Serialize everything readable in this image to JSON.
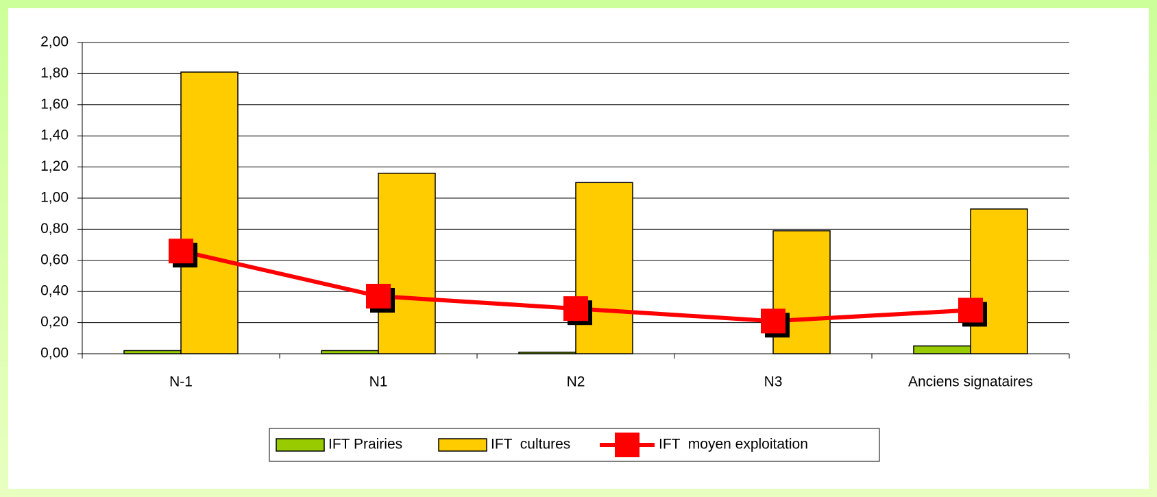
{
  "chart_data": {
    "type": "bar",
    "categories": [
      "N-1",
      "N1",
      "N2",
      "N3",
      "Anciens signataires"
    ],
    "series": [
      {
        "name": "IFT Prairies",
        "color": "#99cc00",
        "values": [
          0.02,
          0.02,
          0.01,
          0,
          0.05
        ]
      },
      {
        "name": "IFT  cultures",
        "color": "#ffcc00",
        "values": [
          1.81,
          1.16,
          1.1,
          0.79,
          0.93
        ]
      },
      {
        "name": "IFT  moyen exploitation",
        "color": "#ff0000",
        "type": "line",
        "values": [
          0.66,
          0.37,
          0.29,
          0.21,
          0.28
        ]
      }
    ],
    "ylim": [
      0,
      2
    ],
    "yticks": [
      {
        "value": 0,
        "label": "0,00"
      },
      {
        "value": 0.2,
        "label": "0,20"
      },
      {
        "value": 0.4,
        "label": "0,40"
      },
      {
        "value": 0.6,
        "label": "0,60"
      },
      {
        "value": 0.8,
        "label": "0,80"
      },
      {
        "value": 1,
        "label": "1,00"
      },
      {
        "value": 1.2,
        "label": "1,20"
      },
      {
        "value": 1.4,
        "label": "1,40"
      },
      {
        "value": 1.6,
        "label": "1,60"
      },
      {
        "value": 1.8,
        "label": "1,80"
      },
      {
        "value": 2,
        "label": "2,00"
      }
    ],
    "grid": true,
    "legend": "bottom"
  }
}
